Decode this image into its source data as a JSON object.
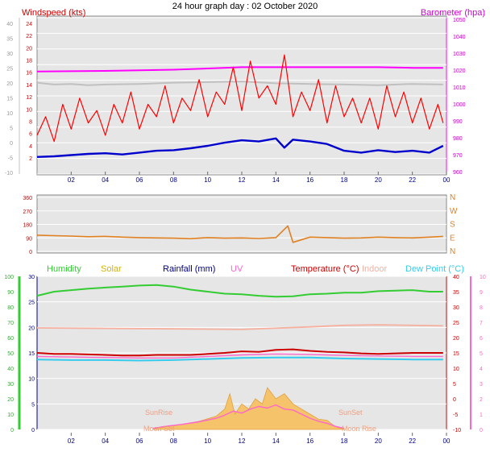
{
  "title": "24 hour graph day : 02 October 2020",
  "x_ticks": [
    "02",
    "04",
    "06",
    "08",
    "10",
    "12",
    "14",
    "16",
    "18",
    "20",
    "22",
    "00"
  ],
  "colors": {
    "wind": "#ff0000",
    "avg": "#0000cc",
    "gust": "#c0c0c0",
    "baro": "#ff00ff",
    "dir": "#e08020",
    "hum": "#33cc33",
    "solar": "#f5c36a",
    "rain": "#000080",
    "uv": "#ff66cc",
    "temp": "#cc0000",
    "indoor": "#f5b0a0",
    "dew": "#33ccee"
  },
  "chart_data": [
    {
      "type": "line",
      "name": "wind",
      "left_label": "Windspeed (kts)",
      "right_label": "Barometer (hpa)",
      "left_ticks": [
        "24",
        "22",
        "20",
        "18",
        "16",
        "14",
        "12",
        "10",
        "8",
        "6",
        "4",
        "2"
      ],
      "right_ticks": [
        "1050",
        "1040",
        "1030",
        "1020",
        "1010",
        "1000",
        "990",
        "980",
        "970",
        "960"
      ],
      "outer_ticks": [
        "40",
        "35",
        "30",
        "25",
        "20",
        "15",
        "10",
        "5",
        "0",
        "-5",
        "-10"
      ],
      "ylim": [
        0,
        25
      ],
      "series": [
        {
          "key": "gust",
          "x": [
            0,
            1,
            2,
            3,
            4,
            6,
            8,
            10,
            12,
            14,
            16,
            18,
            20,
            22,
            23.8
          ],
          "y": [
            14.5,
            14.2,
            14.3,
            14.1,
            14.2,
            14.3,
            14.5,
            14.6,
            14.7,
            14.4,
            14.3,
            14.2,
            14.1,
            14.3,
            14.2
          ]
        },
        {
          "key": "baro",
          "x": [
            0,
            4,
            8,
            10,
            12,
            14,
            16,
            18,
            20,
            22,
            23.8
          ],
          "y": [
            16.3,
            16.4,
            16.6,
            16.8,
            17.0,
            17.0,
            17.0,
            17.0,
            17.0,
            16.9,
            16.9
          ]
        },
        {
          "key": "wind",
          "x": [
            0,
            0.5,
            1,
            1.5,
            2,
            2.5,
            3,
            3.5,
            4,
            4.5,
            5,
            5.5,
            6,
            6.5,
            7,
            7.5,
            8,
            8.5,
            9,
            9.5,
            10,
            10.5,
            11,
            11.5,
            12,
            12.5,
            13,
            13.5,
            14,
            14.5,
            15,
            15.5,
            16,
            16.5,
            17,
            17.5,
            18,
            18.5,
            19,
            19.5,
            20,
            20.5,
            21,
            21.5,
            22,
            22.5,
            23,
            23.5,
            23.8
          ],
          "y": [
            6,
            9,
            5,
            11,
            7,
            12,
            8,
            10,
            6,
            11,
            8,
            13,
            7,
            11,
            9,
            14,
            8,
            12,
            10,
            15,
            9,
            13,
            11,
            17,
            10,
            18,
            12,
            14,
            11,
            19,
            9,
            13,
            10,
            15,
            8,
            14,
            9,
            12,
            8,
            12,
            7,
            14,
            9,
            13,
            8,
            12,
            7,
            11,
            8
          ]
        },
        {
          "key": "avg",
          "x": [
            0,
            1,
            2,
            3,
            4,
            5,
            6,
            7,
            8,
            9,
            10,
            11,
            12,
            13,
            14,
            14.5,
            15,
            16,
            17,
            18,
            19,
            20,
            21,
            22,
            23,
            23.8
          ],
          "y": [
            2.5,
            2.6,
            2.8,
            3.0,
            3.1,
            2.9,
            3.2,
            3.5,
            3.6,
            3.9,
            4.3,
            4.8,
            5.2,
            5.0,
            5.5,
            4.0,
            5.3,
            5.0,
            4.6,
            3.5,
            3.2,
            3.6,
            3.3,
            3.5,
            3.2,
            4.3
          ]
        }
      ]
    },
    {
      "type": "line",
      "name": "wind_direction",
      "left_ticks": [
        "360",
        "270",
        "180",
        "90",
        "0"
      ],
      "right_ticks": [
        "N",
        "W",
        "S",
        "E",
        "N"
      ],
      "ylim": [
        0,
        360
      ],
      "series": [
        {
          "key": "dir",
          "x": [
            0,
            1,
            2,
            3,
            4,
            5,
            6,
            7,
            8,
            9,
            10,
            11,
            12,
            13,
            14,
            14.7,
            15,
            16,
            17,
            18,
            19,
            20,
            21,
            22,
            23,
            23.8
          ],
          "y": [
            108,
            105,
            102,
            98,
            100,
            95,
            92,
            90,
            88,
            85,
            92,
            88,
            90,
            86,
            92,
            170,
            60,
            95,
            92,
            88,
            90,
            95,
            92,
            90,
            95,
            100
          ]
        }
      ]
    },
    {
      "type": "line",
      "name": "climate",
      "labels": [
        "Humidity",
        "Solar",
        "Rainfall (mm)",
        "UV",
        "Temperature (°C)",
        "Indoor",
        "Dew Point (°C)"
      ],
      "annotations": [
        "SunRise",
        "SunSet",
        "Moon Set",
        "Moon Rise"
      ],
      "outer_left_ticks": [
        "100",
        "90",
        "80",
        "70",
        "60",
        "50",
        "40",
        "30",
        "20",
        "10",
        "0"
      ],
      "left_ticks": [
        "30",
        "25",
        "20",
        "15",
        "10",
        "5",
        "0"
      ],
      "right_ticks": [
        "40",
        "35",
        "30",
        "25",
        "20",
        "15",
        "10",
        "5",
        "0",
        "-5",
        "-10"
      ],
      "outer_right_ticks": [
        "10",
        "9",
        "8",
        "7",
        "6",
        "5",
        "4",
        "3",
        "2",
        "1",
        "0"
      ],
      "ylim": [
        0,
        30
      ],
      "series": [
        {
          "key": "hum",
          "x": [
            0,
            1,
            2,
            3,
            4,
            5,
            6,
            7,
            8,
            9,
            10,
            11,
            12,
            13,
            14,
            15,
            16,
            17,
            18,
            19,
            20,
            21,
            22,
            23,
            23.8
          ],
          "y": [
            26.2,
            27.0,
            27.3,
            27.6,
            27.8,
            28.0,
            28.2,
            28.3,
            28.0,
            27.4,
            27.0,
            26.6,
            26.5,
            26.2,
            26.0,
            26.1,
            26.5,
            26.6,
            26.8,
            26.8,
            27.1,
            27.2,
            27.3,
            27.0,
            27.0
          ]
        },
        {
          "key": "indoor",
          "x": [
            0,
            4,
            8,
            12,
            16,
            18,
            20,
            22,
            23.8
          ],
          "y": [
            19.9,
            19.8,
            19.7,
            19.6,
            20.1,
            20.4,
            20.5,
            20.4,
            20.3
          ]
        },
        {
          "key": "temp",
          "x": [
            0,
            1,
            2,
            3,
            4,
            5,
            6,
            7,
            8,
            9,
            10,
            11,
            12,
            13,
            14,
            15,
            16,
            17,
            18,
            19,
            20,
            21,
            22,
            23,
            23.8
          ],
          "y": [
            15.0,
            14.8,
            14.8,
            14.7,
            14.6,
            14.5,
            14.5,
            14.6,
            14.6,
            14.6,
            14.8,
            15.0,
            15.3,
            15.2,
            15.6,
            15.7,
            15.4,
            15.2,
            15.1,
            14.9,
            14.8,
            14.9,
            15.0,
            15.0,
            15.0
          ]
        },
        {
          "key": "uv",
          "x": [
            0,
            2,
            4,
            6,
            8,
            10,
            12,
            14,
            16,
            18,
            20,
            22,
            23.8
          ],
          "y": [
            14.3,
            14.2,
            14.1,
            14.0,
            14.0,
            14.3,
            14.6,
            14.8,
            14.7,
            14.5,
            14.4,
            14.3,
            14.3
          ]
        },
        {
          "key": "dew",
          "x": [
            0,
            2,
            4,
            6,
            8,
            10,
            12,
            14,
            16,
            18,
            20,
            22,
            23.8
          ],
          "y": [
            13.7,
            13.6,
            13.6,
            13.5,
            13.6,
            13.8,
            14.0,
            14.1,
            14.1,
            13.9,
            13.8,
            13.7,
            13.7
          ]
        },
        {
          "key": "solar",
          "x": [
            6.8,
            7.5,
            8.5,
            9.5,
            10.5,
            11,
            11.3,
            11.6,
            12,
            12.4,
            12.8,
            13.2,
            13.5,
            14,
            14.5,
            15,
            15.5,
            16,
            16.5,
            17,
            17.3,
            17.6,
            18
          ],
          "y": [
            0.1,
            0.5,
            1.0,
            1.6,
            2.6,
            4.0,
            7.0,
            3.0,
            5.0,
            4.0,
            6.0,
            5.0,
            8.2,
            6.0,
            7.0,
            5.0,
            4.0,
            3.0,
            2.0,
            1.8,
            1.0,
            0.4,
            0.1
          ]
        },
        {
          "key": "uvline",
          "x": [
            6.8,
            7.5,
            8.5,
            9.5,
            10.5,
            11,
            11.5,
            12,
            12.5,
            13,
            13.5,
            14,
            14.5,
            15,
            15.5,
            16,
            16.5,
            17,
            17.5,
            18
          ],
          "y": [
            0.2,
            0.6,
            1.0,
            1.5,
            2.2,
            2.8,
            3.6,
            3.2,
            4.0,
            4.5,
            4.2,
            4.8,
            4.0,
            3.8,
            3.0,
            2.2,
            1.6,
            1.2,
            0.6,
            0.2
          ]
        }
      ]
    }
  ]
}
